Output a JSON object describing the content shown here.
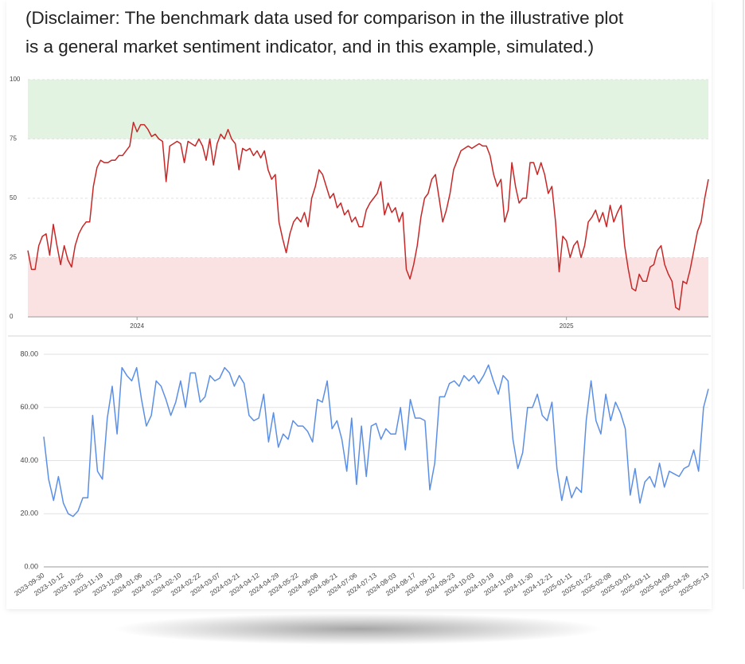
{
  "disclaimer": [
    "(Disclaimer: The benchmark data used for comparison in the illustrative plot",
    "is a general market sentiment indicator, and in this example, simulated.)"
  ],
  "chart_data": [
    {
      "type": "line",
      "color": "#c62828",
      "ylim": [
        0,
        100
      ],
      "yticks": [
        0,
        25,
        50,
        75,
        100
      ],
      "grid": true,
      "bands": [
        {
          "from": 75,
          "to": 100,
          "color": "#e3f3e1"
        },
        {
          "from": 0,
          "to": 25,
          "color": "#fbe2e2"
        }
      ],
      "categories": [
        null,
        null,
        null,
        null,
        null,
        null,
        null,
        null,
        null,
        null,
        null,
        null,
        null,
        null,
        null,
        null,
        null,
        null,
        null,
        null,
        null,
        null,
        null,
        null,
        null,
        null,
        null,
        null,
        null,
        null,
        "2024",
        null,
        null,
        null,
        null,
        null,
        null,
        null,
        null,
        null,
        null,
        null,
        null,
        null,
        null,
        null,
        null,
        null,
        null,
        null,
        null,
        null,
        null,
        null,
        null,
        null,
        null,
        null,
        null,
        null,
        null,
        null,
        null,
        null,
        null,
        null,
        null,
        null,
        null,
        null,
        null,
        null,
        null,
        null,
        null,
        null,
        null,
        null,
        null,
        null,
        null,
        null,
        null,
        null,
        null,
        null,
        null,
        null,
        null,
        null,
        null,
        null,
        null,
        null,
        null,
        null,
        null,
        null,
        null,
        null,
        null,
        null,
        null,
        null,
        null,
        null,
        null,
        null,
        null,
        null,
        null,
        null,
        null,
        null,
        null,
        null,
        null,
        null,
        null,
        null,
        null,
        null,
        null,
        null,
        null,
        null,
        null,
        null,
        null,
        null,
        null,
        null,
        null,
        null,
        null,
        null,
        null,
        null,
        null,
        null,
        null,
        null,
        null,
        null,
        null,
        null,
        null,
        null,
        "2025",
        null,
        null,
        null,
        null,
        null,
        null,
        null,
        null,
        null,
        null,
        null,
        null,
        null,
        null,
        null,
        null,
        null,
        null,
        null,
        null,
        null,
        null,
        null,
        null,
        null,
        null,
        null,
        null,
        null,
        null,
        null,
        null,
        null,
        null,
        null,
        null,
        null,
        null,
        null
      ],
      "values": [
        28,
        20,
        20,
        30,
        34,
        35,
        26,
        39,
        30,
        22,
        30,
        24,
        21,
        30,
        35,
        38,
        40,
        40,
        55,
        63,
        66,
        65,
        65,
        66,
        66,
        68,
        68,
        70,
        72,
        82,
        78,
        81,
        81,
        79,
        76,
        77,
        75,
        74,
        57,
        72,
        73,
        74,
        73,
        65,
        74,
        73,
        72,
        75,
        72,
        66,
        75,
        64,
        73,
        77,
        75,
        79,
        75,
        73,
        62,
        71,
        70,
        71,
        68,
        70,
        67,
        70,
        62,
        58,
        60,
        40,
        33,
        27,
        35,
        40,
        42,
        40,
        44,
        38,
        50,
        55,
        62,
        60,
        55,
        50,
        52,
        46,
        48,
        43,
        45,
        40,
        42,
        38,
        38,
        45,
        48,
        50,
        52,
        57,
        43,
        48,
        44,
        46,
        40,
        44,
        20,
        16,
        22,
        30,
        42,
        50,
        52,
        58,
        60,
        50,
        40,
        45,
        52,
        62,
        66,
        70,
        71,
        72,
        71,
        72,
        73,
        72,
        72,
        68,
        60,
        55,
        58,
        40,
        45,
        65,
        55,
        48,
        50,
        50,
        65,
        65,
        60,
        65,
        60,
        52,
        55,
        40,
        19,
        34,
        32,
        25,
        30,
        32,
        25,
        30,
        40,
        42,
        45,
        40,
        44,
        38,
        47,
        40,
        44,
        47,
        30,
        20,
        12,
        11,
        18,
        15,
        15,
        21,
        22,
        28,
        30,
        22,
        18,
        15,
        4,
        3,
        15,
        14,
        20,
        28,
        36,
        40,
        50,
        58
      ]
    },
    {
      "type": "line",
      "color": "#5b8fe6",
      "ylim": [
        0,
        80
      ],
      "yticks": [
        {
          "value": 0,
          "label": "0.00"
        },
        {
          "value": 20,
          "label": "20.00"
        },
        {
          "value": 40,
          "label": "40.00"
        },
        {
          "value": 60,
          "label": "60.00"
        },
        {
          "value": 80,
          "label": "80.00"
        }
      ],
      "grid": true,
      "categories": [
        "2023-09-30",
        null,
        null,
        null,
        "2023-10-12",
        null,
        null,
        null,
        "2023-10-25",
        null,
        null,
        null,
        "2023-11-19",
        null,
        null,
        null,
        "2023-12-09",
        null,
        null,
        null,
        "2024-01-06",
        null,
        null,
        null,
        "2024-01-23",
        null,
        null,
        null,
        "2024-02-10",
        null,
        null,
        null,
        "2024-02-22",
        null,
        null,
        null,
        "2024-03-07",
        null,
        null,
        null,
        "2024-03-21",
        null,
        null,
        null,
        "2024-04-12",
        null,
        null,
        null,
        "2024-04-29",
        null,
        null,
        null,
        "2024-05-22",
        null,
        null,
        null,
        "2024-06-08",
        null,
        null,
        null,
        "2024-06-21",
        null,
        null,
        null,
        "2024-07-06",
        null,
        null,
        null,
        "2024-07-13",
        null,
        null,
        null,
        "2024-08-03",
        null,
        null,
        null,
        "2024-08-17",
        null,
        null,
        null,
        "2024-09-12",
        null,
        null,
        null,
        "2024-09-23",
        null,
        null,
        null,
        "2024-10-03",
        null,
        null,
        null,
        "2024-10-19",
        null,
        null,
        null,
        "2024-11-09",
        null,
        null,
        null,
        "2024-11-30",
        null,
        null,
        null,
        "2024-12-21",
        null,
        null,
        null,
        "2025-01-11",
        null,
        null,
        null,
        "2025-01-22",
        null,
        null,
        null,
        "2025-02-08",
        null,
        null,
        null,
        "2025-03-01",
        null,
        null,
        null,
        "2025-03-11",
        null,
        null,
        null,
        "2025-04-09",
        null,
        null,
        null,
        "2025-04-26",
        null,
        null,
        null,
        "2025-05-13"
      ],
      "values": [
        49,
        33,
        25,
        34,
        24,
        20,
        19,
        21,
        26,
        26,
        57,
        36,
        33,
        56,
        68,
        50,
        75,
        72,
        70,
        75,
        63,
        53,
        57,
        70,
        68,
        63,
        57,
        62,
        70,
        60,
        73,
        73,
        62,
        64,
        72,
        70,
        71,
        75,
        73,
        68,
        72,
        69,
        57,
        55,
        56,
        65,
        47,
        58,
        45,
        50,
        48,
        55,
        53,
        53,
        51,
        47,
        63,
        62,
        70,
        52,
        55,
        48,
        36,
        56,
        31,
        53,
        34,
        53,
        54,
        48,
        52,
        50,
        50,
        60,
        44,
        63,
        56,
        56,
        55,
        29,
        39,
        64,
        64,
        69,
        70,
        68,
        72,
        70,
        72,
        69,
        72,
        76,
        70,
        65,
        72,
        70,
        48,
        37,
        43,
        60,
        60,
        65,
        57,
        55,
        62,
        37,
        25,
        34,
        26,
        30,
        28,
        55,
        70,
        55,
        50,
        65,
        55,
        62,
        58,
        52,
        27,
        37,
        24,
        32,
        34,
        30,
        39,
        30,
        36,
        35,
        34,
        37,
        38,
        44,
        36,
        60,
        67
      ]
    }
  ]
}
